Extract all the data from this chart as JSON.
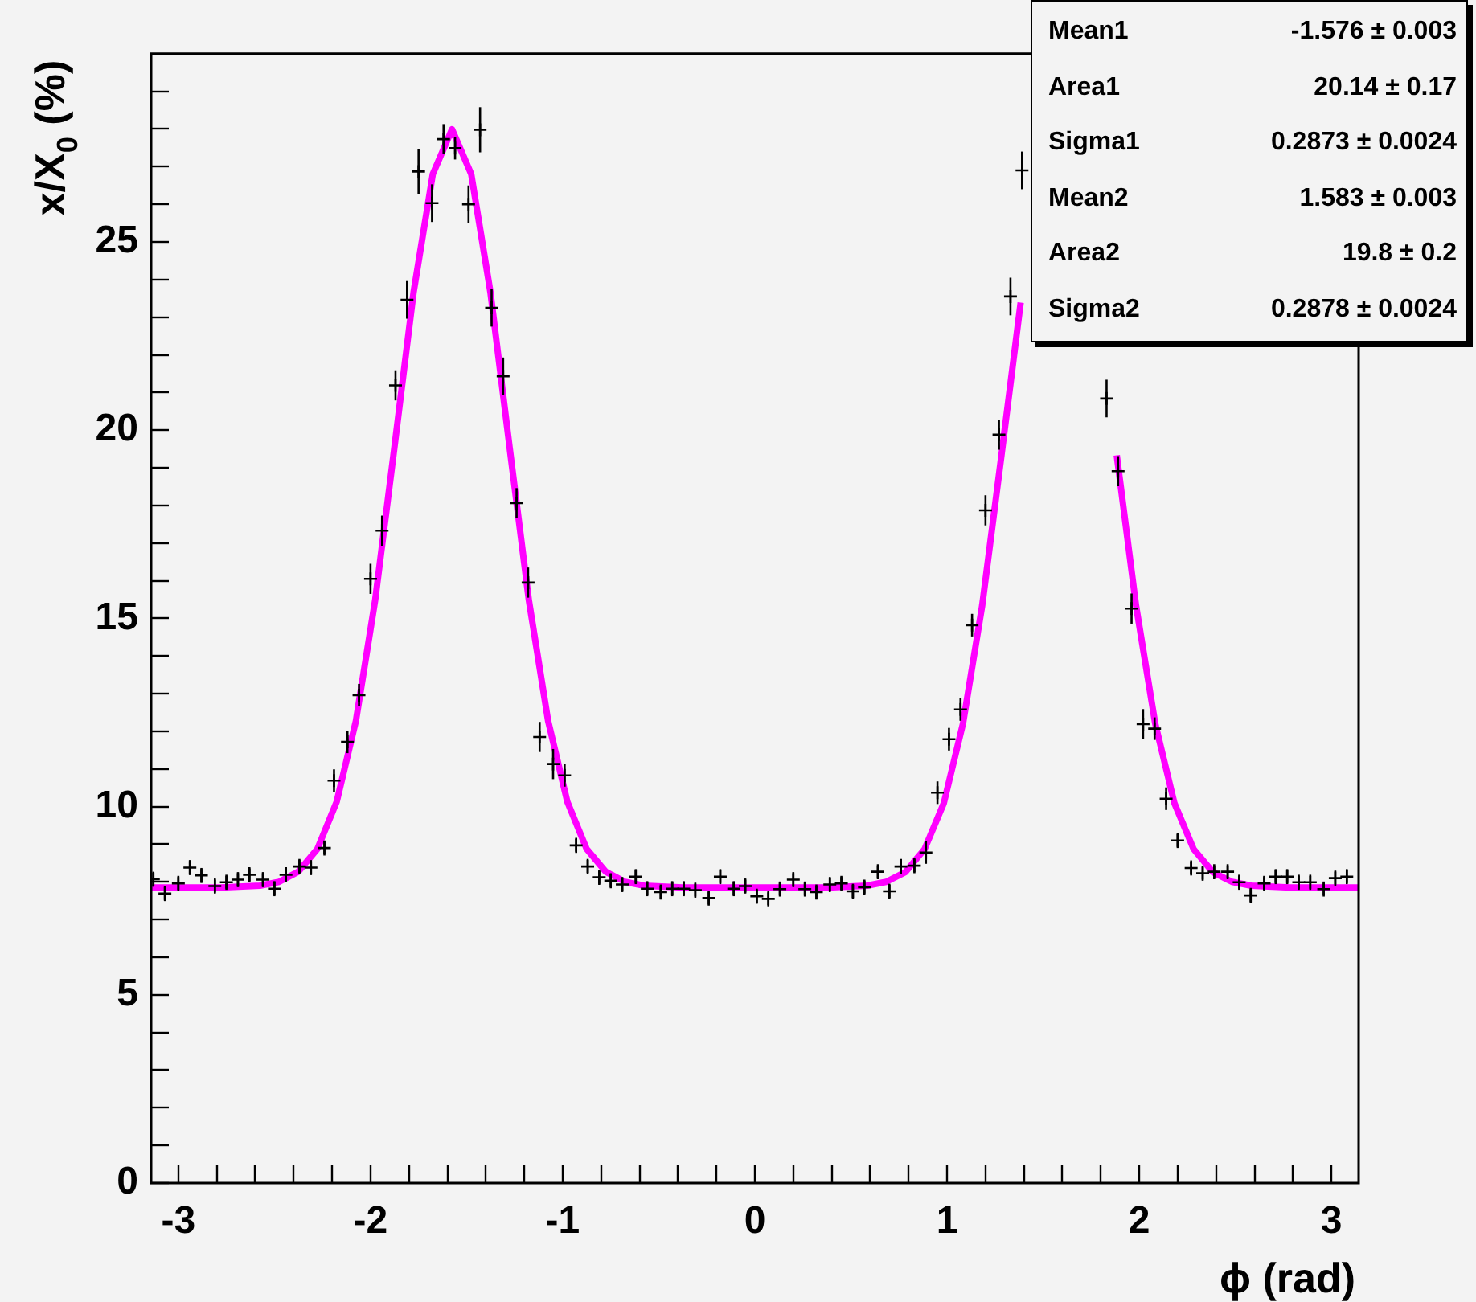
{
  "chart_data": {
    "type": "scatter",
    "xlabel": "ϕ (rad)",
    "ylabel": "x/X$_{0}$ (%)",
    "xlim": [
      -3.1416,
      3.1416
    ],
    "ylim": [
      0,
      30
    ],
    "xticks": [
      -3,
      {
        "value": -2.8,
        "label": null
      },
      {
        "value": -2.6,
        "label": null
      },
      {
        "value": -2.4,
        "label": null
      },
      {
        "value": -2.2,
        "label": null
      },
      -2,
      {
        "value": -1.8,
        "label": null
      },
      {
        "value": -1.6,
        "label": null
      },
      {
        "value": -1.4,
        "label": null
      },
      {
        "value": -1.2,
        "label": null
      },
      -1,
      {
        "value": -0.8,
        "label": null
      },
      {
        "value": -0.6,
        "label": null
      },
      {
        "value": -0.4,
        "label": null
      },
      {
        "value": -0.2,
        "label": null
      },
      0,
      {
        "value": 0.2,
        "label": null
      },
      {
        "value": 0.4,
        "label": null
      },
      {
        "value": 0.6,
        "label": null
      },
      {
        "value": 0.8,
        "label": null
      },
      1,
      {
        "value": 1.2,
        "label": null
      },
      {
        "value": 1.4,
        "label": null
      },
      {
        "value": 1.6,
        "label": null
      },
      {
        "value": 1.8,
        "label": null
      },
      2,
      {
        "value": 2.2,
        "label": null
      },
      {
        "value": 2.4,
        "label": null
      },
      {
        "value": 2.6,
        "label": null
      },
      {
        "value": 2.8,
        "label": null
      },
      3
    ],
    "yticks": [
      0,
      {
        "value": 1,
        "label": null
      },
      {
        "value": 2,
        "label": null
      },
      {
        "value": 3,
        "label": null
      },
      {
        "value": 4,
        "label": null
      },
      5,
      {
        "value": 6,
        "label": null
      },
      {
        "value": 7,
        "label": null
      },
      {
        "value": 8,
        "label": null
      },
      {
        "value": 9,
        "label": null
      },
      10,
      {
        "value": 11,
        "label": null
      },
      {
        "value": 12,
        "label": null
      },
      {
        "value": 13,
        "label": null
      },
      {
        "value": 14,
        "label": null
      },
      15,
      {
        "value": 16,
        "label": null
      },
      {
        "value": 17,
        "label": null
      },
      {
        "value": 18,
        "label": null
      },
      {
        "value": 19,
        "label": null
      },
      20,
      {
        "value": 21,
        "label": null
      },
      {
        "value": 22,
        "label": null
      },
      {
        "value": 23,
        "label": null
      },
      {
        "value": 24,
        "label": null
      },
      25,
      {
        "value": 26,
        "label": null
      },
      {
        "value": 27,
        "label": null
      },
      {
        "value": 28,
        "label": null
      },
      {
        "value": 29,
        "label": null
      }
    ],
    "grid": false,
    "legend": false,
    "annotations": [
      "Mean1 -1.576 ± 0.003",
      "Area1 20.14 ± 0.17",
      "Sigma1 0.2873 ± 0.0024",
      "Mean2 1.583 ± 0.003",
      "Area2 19.8 ± 0.2",
      "Sigma2 0.2878 ± 0.0024"
    ],
    "series": [
      {
        "type": "scatter",
        "color": "#000000",
        "marker": "cross",
        "x": [
          -3.13,
          -3.07,
          -3.0,
          -2.94,
          -2.88,
          -2.81,
          -2.75,
          -2.69,
          -2.63,
          -2.56,
          -2.5,
          -2.44,
          -2.37,
          -2.31,
          -2.24,
          -2.19,
          -2.12,
          -2.06,
          -2.0,
          -1.94,
          -1.87,
          -1.81,
          -1.75,
          -1.68,
          -1.62,
          -1.56,
          -1.49,
          -1.43,
          -1.37,
          -1.31,
          -1.24,
          -1.18,
          -1.12,
          -1.05,
          -0.99,
          -0.93,
          -0.87,
          -0.81,
          -0.75,
          -0.69,
          -0.62,
          -0.56,
          -0.49,
          -0.43,
          -0.37,
          -0.31,
          -0.24,
          -0.18,
          -0.11,
          -0.05,
          0.01,
          0.07,
          0.13,
          0.2,
          0.26,
          0.32,
          0.39,
          0.45,
          0.51,
          0.57,
          0.64,
          0.7,
          0.76,
          0.83,
          0.89,
          0.95,
          1.01,
          1.07,
          1.13,
          1.2,
          1.27,
          1.33,
          1.39,
          1.45,
          1.51,
          1.58,
          1.64,
          1.7,
          1.77,
          1.83,
          1.89,
          1.96,
          2.02,
          2.08,
          2.14,
          2.2,
          2.27,
          2.33,
          2.39,
          2.46,
          2.52,
          2.58,
          2.65,
          2.71,
          2.77,
          2.83,
          2.89,
          2.96,
          3.02,
          3.08
        ],
        "values": [
          8.07,
          7.69,
          7.96,
          8.38,
          8.17,
          7.89,
          7.99,
          8.06,
          8.19,
          8.06,
          7.82,
          8.19,
          8.41,
          8.38,
          8.9,
          10.69,
          11.72,
          12.96,
          16.05,
          17.33,
          21.19,
          23.46,
          26.87,
          26.03,
          27.73,
          27.49,
          26.0,
          27.98,
          23.25,
          21.43,
          18.06,
          15.95,
          11.85,
          11.13,
          10.83,
          8.97,
          8.41,
          8.12,
          8.03,
          7.93,
          8.14,
          7.82,
          7.73,
          7.82,
          7.82,
          7.78,
          7.57,
          8.14,
          7.82,
          7.89,
          7.62,
          7.55,
          7.81,
          8.06,
          7.81,
          7.73,
          7.93,
          7.96,
          7.75,
          7.86,
          8.27,
          7.75,
          8.41,
          8.43,
          8.78,
          10.37,
          11.79,
          12.58,
          14.82,
          17.87,
          19.88,
          23.55,
          26.9,
          null,
          null,
          null,
          null,
          null,
          null,
          20.84,
          18.91,
          15.26,
          12.19,
          12.07,
          10.21,
          9.1,
          8.37,
          8.23,
          8.27,
          8.27,
          7.99,
          7.64,
          7.96,
          8.14,
          8.14,
          7.99,
          7.99,
          7.81,
          8.1,
          8.14
        ],
        "errors": [
          0.2,
          0.2,
          0.2,
          0.2,
          0.2,
          0.2,
          0.2,
          0.2,
          0.2,
          0.2,
          0.2,
          0.2,
          0.2,
          0.2,
          0.2,
          0.3,
          0.3,
          0.3,
          0.4,
          0.4,
          0.4,
          0.5,
          0.6,
          0.5,
          0.4,
          0.3,
          0.5,
          0.6,
          0.5,
          0.5,
          0.4,
          0.4,
          0.4,
          0.4,
          0.3,
          0.2,
          0.2,
          0.2,
          0.2,
          0.2,
          0.2,
          0.2,
          0.2,
          0.2,
          0.2,
          0.2,
          0.2,
          0.2,
          0.2,
          0.2,
          0.2,
          0.2,
          0.2,
          0.2,
          0.2,
          0.2,
          0.2,
          0.2,
          0.2,
          0.2,
          0.2,
          0.2,
          0.2,
          0.2,
          0.3,
          0.3,
          0.3,
          0.3,
          0.3,
          0.4,
          0.4,
          0.5,
          0.5,
          null,
          null,
          null,
          null,
          null,
          null,
          0.5,
          0.4,
          0.4,
          0.4,
          0.3,
          0.3,
          0.2,
          0.2,
          0.2,
          0.2,
          0.2,
          0.2,
          0.2,
          0.2,
          0.2,
          0.2,
          0.2,
          0.2,
          0.2,
          0.2,
          0.2
        ]
      },
      {
        "type": "line",
        "color": "#ff00ff",
        "marker": "none",
        "x": [
          -3.14,
          -2.776,
          -2.576,
          -2.476,
          -2.376,
          -2.276,
          -2.176,
          -2.076,
          -1.976,
          -1.876,
          -1.776,
          -1.676,
          -1.576,
          -1.476,
          -1.376,
          -1.276,
          -1.176,
          -1.076,
          -0.976,
          -0.876,
          -0.776,
          -0.676,
          -0.576,
          -0.376,
          0.383,
          0.583,
          0.683,
          0.783,
          0.883,
          0.983,
          1.083,
          1.183,
          1.283,
          1.383,
          1.483,
          1.583,
          1.683,
          1.783,
          1.883,
          1.983,
          2.083,
          2.183,
          2.283,
          2.383,
          2.483,
          2.583,
          2.783,
          3.14
        ],
        "values": [
          7.85,
          7.85,
          7.9,
          8.0,
          8.27,
          8.88,
          10.13,
          12.28,
          15.48,
          19.53,
          23.66,
          26.8,
          27.99,
          26.8,
          23.66,
          19.53,
          15.48,
          12.28,
          10.13,
          8.88,
          8.27,
          8.0,
          7.9,
          7.85,
          7.85,
          7.9,
          8.0,
          8.26,
          8.87,
          10.09,
          12.21,
          15.35,
          19.33,
          23.39,
          null,
          null,
          null,
          null,
          19.33,
          15.35,
          12.21,
          10.09,
          8.87,
          8.26,
          8.0,
          7.9,
          7.85,
          7.85
        ]
      }
    ]
  }
}
